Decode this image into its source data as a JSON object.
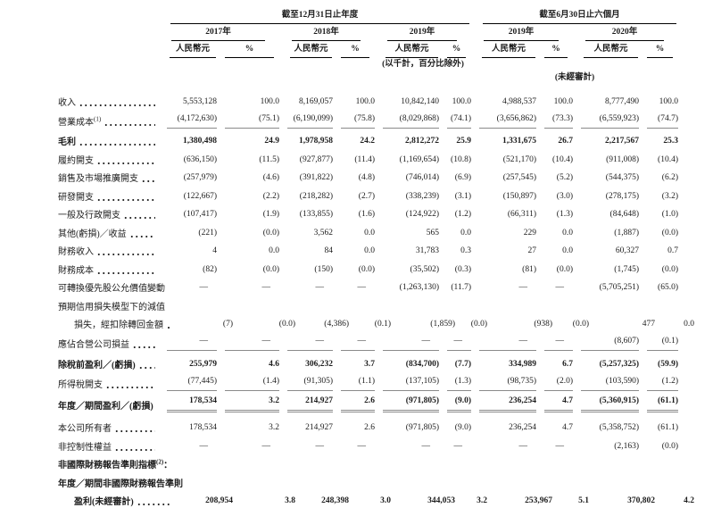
{
  "header": {
    "group_annual": "截至12月31日止年度",
    "group_interim": "截至6月30日止六個月",
    "years": [
      "2017年",
      "2018年",
      "2019年",
      "2019年",
      "2020年"
    ],
    "currency_label": "人民幣元",
    "percent_label": "%",
    "thousands_note": "(以千計，百分比除外)",
    "unaudited_note": "(未經審計)"
  },
  "table": {
    "rows": [
      {
        "label": "收入",
        "cells": [
          "5,553,128",
          "100.0",
          "8,169,057",
          "100.0",
          "10,842,140",
          "100.0",
          "4,988,537",
          "100.0",
          "8,777,490",
          "100.0"
        ]
      },
      {
        "label": "營業成本",
        "sup": "(1)",
        "rule": "single",
        "cells": [
          "(4,172,630)",
          "(75.1)",
          "(6,190,099)",
          "(75.8)",
          "(8,029,868)",
          "(74.1)",
          "(3,656,862)",
          "(73.3)",
          "(6,559,923)",
          "(74.7)"
        ]
      },
      {
        "label": "毛利",
        "bold": true,
        "cells": [
          "1,380,498",
          "24.9",
          "1,978,958",
          "24.2",
          "2,812,272",
          "25.9",
          "1,331,675",
          "26.7",
          "2,217,567",
          "25.3"
        ]
      },
      {
        "label": "履約開支",
        "cells": [
          "(636,150)",
          "(11.5)",
          "(927,877)",
          "(11.4)",
          "(1,169,654)",
          "(10.8)",
          "(521,170)",
          "(10.4)",
          "(911,008)",
          "(10.4)"
        ]
      },
      {
        "label": "銷售及市場推廣開支",
        "cells": [
          "(257,979)",
          "(4.6)",
          "(391,822)",
          "(4.8)",
          "(746,014)",
          "(6.9)",
          "(257,545)",
          "(5.2)",
          "(544,375)",
          "(6.2)"
        ]
      },
      {
        "label": "研發開支",
        "cells": [
          "(122,667)",
          "(2.2)",
          "(218,282)",
          "(2.7)",
          "(338,239)",
          "(3.1)",
          "(150,897)",
          "(3.0)",
          "(278,175)",
          "(3.2)"
        ]
      },
      {
        "label": "一般及行政開支",
        "cells": [
          "(107,417)",
          "(1.9)",
          "(133,855)",
          "(1.6)",
          "(124,922)",
          "(1.2)",
          "(66,311)",
          "(1.3)",
          "(84,648)",
          "(1.0)"
        ]
      },
      {
        "label": "其他(虧損)／收益",
        "cells": [
          "(221)",
          "(0.0)",
          "3,562",
          "0.0",
          "565",
          "0.0",
          "229",
          "0.0",
          "(1,887)",
          "(0.0)"
        ]
      },
      {
        "label": "財務收入",
        "cells": [
          "4",
          "0.0",
          "84",
          "0.0",
          "31,783",
          "0.3",
          "27",
          "0.0",
          "60,327",
          "0.7"
        ]
      },
      {
        "label": "財務成本",
        "cells": [
          "(82)",
          "(0.0)",
          "(150)",
          "(0.0)",
          "(35,502)",
          "(0.3)",
          "(81)",
          "(0.0)",
          "(1,745)",
          "(0.0)"
        ]
      },
      {
        "label": "可轉換優先股公允價值變動",
        "cells": [
          "—",
          "—",
          "—",
          "—",
          "(1,263,130)",
          "(11.7)",
          "—",
          "—",
          "(5,705,251)",
          "(65.0)"
        ]
      },
      {
        "label": "預期信用損失模型下的減值",
        "nodots": true,
        "cells": null
      },
      {
        "label": "損失，經扣除轉回金額",
        "indent": true,
        "cells": [
          "(7)",
          "(0.0)",
          "(4,386)",
          "(0.1)",
          "(1,859)",
          "(0.0)",
          "(938)",
          "(0.0)",
          "477",
          "0.0"
        ]
      },
      {
        "label": "應佔合營公司損益",
        "rule": "single",
        "cells": [
          "—",
          "—",
          "—",
          "—",
          "—",
          "—",
          "—",
          "—",
          "(8,607)",
          "(0.1)"
        ]
      },
      {
        "label": "除稅前盈利／(虧損)",
        "bold": true,
        "cells": [
          "255,979",
          "4.6",
          "306,232",
          "3.7",
          "(834,700)",
          "(7.7)",
          "334,989",
          "6.7",
          "(5,257,325)",
          "(59.9)"
        ]
      },
      {
        "label": "所得稅開支",
        "rule": "single",
        "cells": [
          "(77,445)",
          "(1.4)",
          "(91,305)",
          "(1.1)",
          "(137,105)",
          "(1.3)",
          "(98,735)",
          "(2.0)",
          "(103,590)",
          "(1.2)"
        ]
      },
      {
        "label": "年度／期間盈利／(虧損)",
        "bold": true,
        "rule": "double",
        "cells": [
          "178,534",
          "3.2",
          "214,927",
          "2.6",
          "(971,805)",
          "(9.0)",
          "236,254",
          "4.7",
          "(5,360,915)",
          "(61.1)"
        ]
      },
      {
        "label": "本公司所有者",
        "cells": [
          "178,534",
          "3.2",
          "214,927",
          "2.6",
          "(971,805)",
          "(9.0)",
          "236,254",
          "4.7",
          "(5,358,752)",
          "(61.1)"
        ]
      },
      {
        "label": "非控制性權益",
        "cells": [
          "—",
          "—",
          "—",
          "—",
          "—",
          "—",
          "—",
          "—",
          "(2,163)",
          "(0.0)"
        ]
      },
      {
        "label": "非國際財務報告準則指標",
        "sup": "(2)",
        "suffix": "：",
        "bold": true,
        "nodots": true,
        "cells": null
      },
      {
        "label": "年度／期間非國際財務報告準則",
        "bold": true,
        "nodots": true,
        "cells": null
      },
      {
        "label": "盈利(未經審計)",
        "bold": true,
        "indent": true,
        "cells": [
          "208,954",
          "3.8",
          "248,398",
          "3.0",
          "344,053",
          "3.2",
          "253,967",
          "5.1",
          "370,802",
          "4.2"
        ]
      }
    ]
  }
}
